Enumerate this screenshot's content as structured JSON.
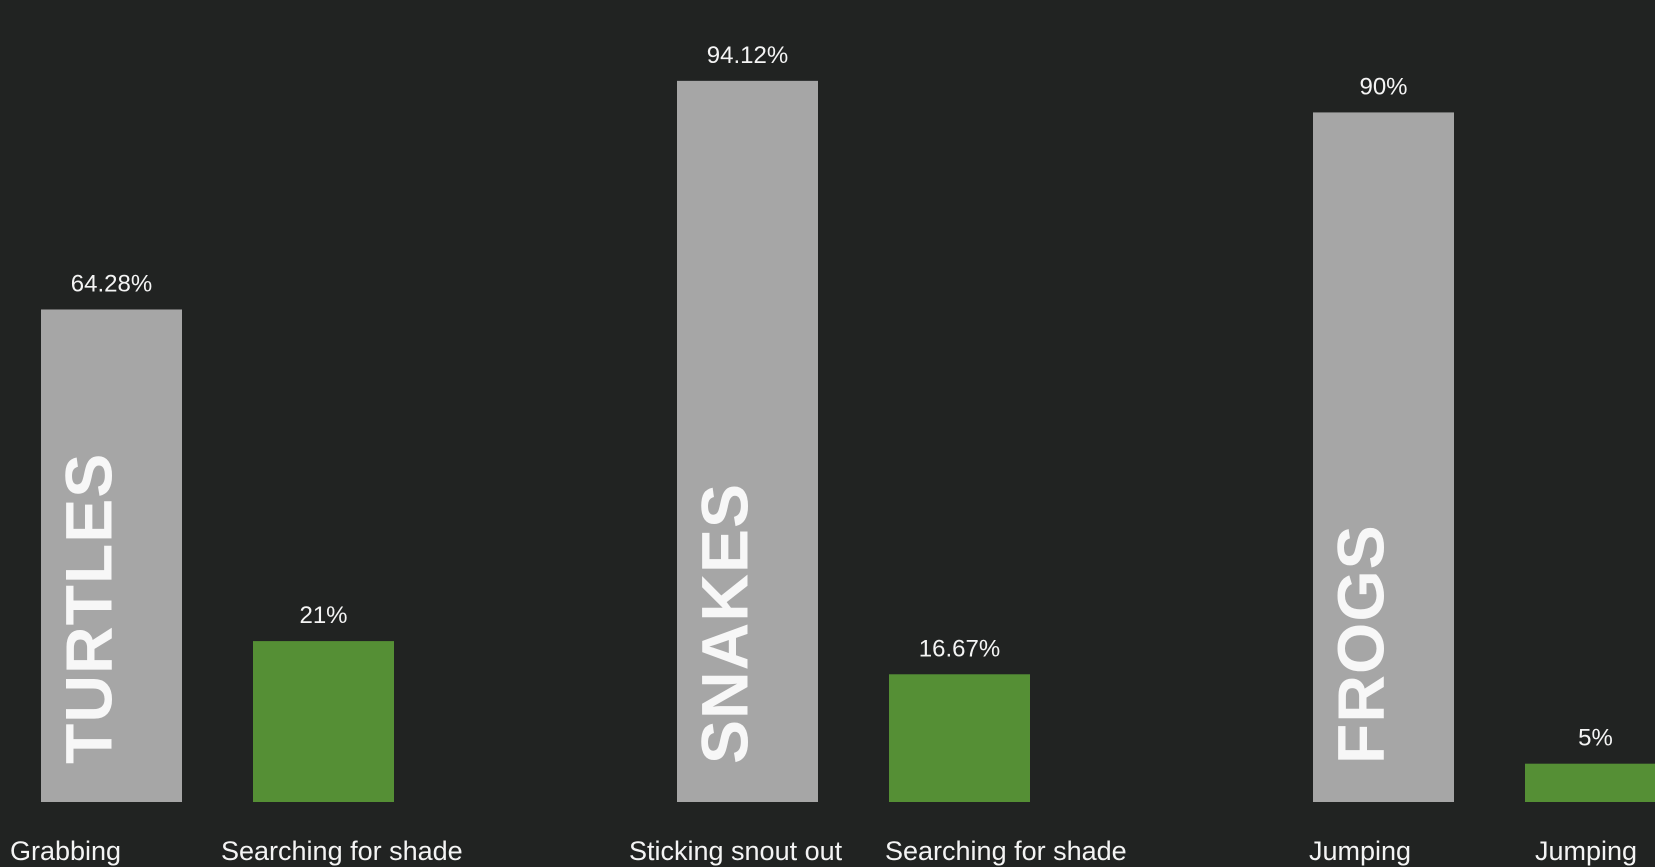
{
  "chart_data": {
    "type": "bar",
    "ylim": [
      0,
      100
    ],
    "colors": {
      "background": "#212322",
      "gray_bar": "#a6a6a6",
      "green_bar": "#558f35",
      "text": "#f4f4f4"
    },
    "groups": [
      {
        "name": "TURTLES",
        "bars": [
          {
            "category": "Grabbing",
            "value": 64.28,
            "label": "64.28%",
            "color_key": "gray_bar"
          },
          {
            "category": "Searching for shade",
            "value": 21,
            "label": "21%",
            "color_key": "green_bar"
          }
        ]
      },
      {
        "name": "SNAKES",
        "bars": [
          {
            "category": "Sticking snout out",
            "value": 94.12,
            "label": "94.12%",
            "color_key": "gray_bar"
          },
          {
            "category": "Searching for shade",
            "value": 16.67,
            "label": "16.67%",
            "color_key": "green_bar"
          }
        ]
      },
      {
        "name": "FROGS",
        "bars": [
          {
            "category": "Jumping",
            "value": 90,
            "label": "90%",
            "color_key": "gray_bar"
          },
          {
            "category": "Jumping",
            "value": 5,
            "label": "5%",
            "color_key": "green_bar"
          }
        ]
      }
    ]
  }
}
